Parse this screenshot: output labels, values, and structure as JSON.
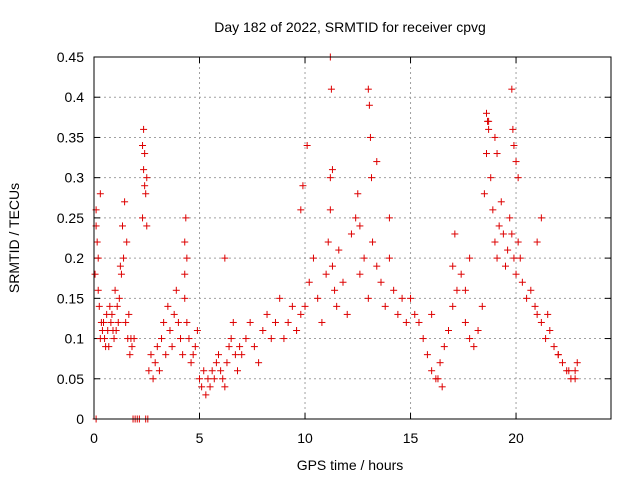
{
  "chart_data": {
    "type": "scatter",
    "title": "Day 182 of 2022, SRMTID for receiver cpvg",
    "xlabel": "GPS time / hours",
    "ylabel": "SRMTID / TECUs",
    "xlim": [
      0,
      24.5
    ],
    "ylim": [
      0,
      0.45
    ],
    "xticks": [
      0,
      5,
      10,
      15,
      20
    ],
    "yticks": [
      0,
      0.05,
      0.1,
      0.15,
      0.2,
      0.25,
      0.3,
      0.35,
      0.4,
      0.45
    ],
    "grid": true,
    "marker": "+",
    "color": "#dd0000",
    "series": [
      {
        "name": "SRMTID",
        "note": "representative sample of ~thousands of plotted points, values estimated from gridlines",
        "x": [
          0.05,
          0.1,
          0.15,
          0.2,
          0.25,
          0.3,
          0.35,
          0.4,
          0.5,
          0.6,
          0.7,
          0.8,
          0.9,
          1.0,
          1.1,
          1.2,
          1.3,
          1.4,
          1.5,
          1.6,
          1.7,
          1.8,
          1.9,
          0.1,
          0.2,
          0.3,
          0.45,
          0.55,
          0.65,
          0.75,
          0.85,
          0.95,
          1.05,
          1.15,
          1.25,
          1.35,
          1.45,
          1.55,
          1.65,
          1.75,
          2.3,
          2.35,
          2.4,
          2.45,
          2.5,
          2.3,
          2.4,
          2.5,
          2.35,
          2.6,
          2.7,
          2.8,
          2.9,
          3.0,
          3.1,
          3.2,
          3.3,
          3.4,
          3.5,
          3.6,
          3.7,
          3.8,
          3.9,
          4.0,
          4.1,
          4.2,
          4.3,
          4.4,
          4.5,
          4.6,
          4.7,
          4.8,
          4.9,
          5.0,
          5.1,
          5.2,
          5.3,
          5.4,
          5.5,
          5.6,
          5.7,
          5.8,
          5.9,
          6.0,
          6.1,
          6.2,
          6.3,
          6.4,
          6.5,
          6.6,
          6.7,
          6.8,
          6.9,
          7.0,
          7.2,
          7.4,
          7.6,
          7.8,
          8.0,
          8.2,
          8.4,
          8.6,
          8.8,
          9.0,
          9.2,
          9.4,
          9.6,
          9.8,
          4.3,
          4.35,
          4.4,
          4.3,
          6.2,
          10.0,
          10.2,
          10.4,
          10.6,
          10.8,
          11.0,
          11.1,
          11.2,
          11.3,
          11.4,
          11.5,
          11.6,
          11.8,
          12.0,
          12.2,
          12.4,
          12.6,
          12.8,
          13.0,
          13.2,
          13.4,
          13.6,
          13.8,
          14.0,
          14.2,
          14.4,
          14.6,
          14.8,
          9.8,
          9.9,
          10.1,
          11.2,
          11.25,
          11.3,
          11.2,
          12.5,
          12.6,
          13.0,
          13.05,
          13.1,
          13.15,
          13.4,
          14.0,
          15.0,
          15.2,
          15.4,
          15.6,
          15.8,
          16.0,
          16.2,
          16.4,
          16.6,
          16.8,
          17.0,
          17.2,
          17.4,
          17.6,
          17.8,
          18.0,
          18.2,
          18.4,
          16.0,
          16.3,
          16.5,
          17.6,
          17.8,
          17.1,
          17.0,
          18.5,
          18.6,
          18.7,
          18.8,
          18.9,
          19.0,
          19.1,
          19.2,
          19.3,
          19.4,
          19.5,
          19.6,
          19.7,
          19.8,
          19.9,
          20.0,
          20.1,
          20.2,
          18.6,
          18.65,
          18.7,
          19.0,
          19.1,
          19.8,
          19.85,
          19.9,
          20.0,
          20.1,
          20.3,
          20.5,
          20.7,
          20.9,
          21.0,
          21.2,
          21.4,
          21.6,
          21.8,
          22.0,
          22.2,
          22.4,
          22.6,
          22.8,
          22.9,
          21.0,
          21.2,
          21.5,
          22.0,
          22.5,
          22.8,
          0.1,
          1.85,
          1.95,
          2.05,
          2.15,
          2.45,
          2.55
        ],
        "y": [
          0.18,
          0.24,
          0.22,
          0.16,
          0.14,
          0.28,
          0.12,
          0.11,
          0.1,
          0.13,
          0.09,
          0.12,
          0.11,
          0.16,
          0.14,
          0.15,
          0.18,
          0.2,
          0.12,
          0.1,
          0.08,
          0.09,
          0.1,
          0.26,
          0.2,
          0.1,
          0.12,
          0.09,
          0.11,
          0.14,
          0.13,
          0.1,
          0.11,
          0.12,
          0.19,
          0.24,
          0.27,
          0.22,
          0.13,
          0.1,
          0.34,
          0.36,
          0.29,
          0.28,
          0.3,
          0.25,
          0.33,
          0.24,
          0.31,
          0.06,
          0.08,
          0.05,
          0.07,
          0.09,
          0.06,
          0.1,
          0.12,
          0.08,
          0.14,
          0.11,
          0.09,
          0.13,
          0.16,
          0.12,
          0.1,
          0.08,
          0.15,
          0.12,
          0.1,
          0.07,
          0.08,
          0.09,
          0.11,
          0.05,
          0.04,
          0.06,
          0.03,
          0.05,
          0.04,
          0.06,
          0.05,
          0.07,
          0.08,
          0.06,
          0.05,
          0.04,
          0.07,
          0.09,
          0.1,
          0.12,
          0.08,
          0.06,
          0.09,
          0.08,
          0.1,
          0.12,
          0.09,
          0.07,
          0.11,
          0.13,
          0.1,
          0.12,
          0.15,
          0.1,
          0.12,
          0.14,
          0.11,
          0.13,
          0.22,
          0.25,
          0.2,
          0.18,
          0.2,
          0.14,
          0.17,
          0.2,
          0.15,
          0.12,
          0.18,
          0.22,
          0.26,
          0.19,
          0.16,
          0.14,
          0.21,
          0.17,
          0.13,
          0.23,
          0.25,
          0.18,
          0.2,
          0.15,
          0.22,
          0.19,
          0.17,
          0.14,
          0.2,
          0.16,
          0.13,
          0.15,
          0.12,
          0.26,
          0.29,
          0.34,
          0.45,
          0.41,
          0.31,
          0.3,
          0.28,
          0.24,
          0.41,
          0.39,
          0.35,
          0.3,
          0.32,
          0.25,
          0.15,
          0.13,
          0.12,
          0.1,
          0.08,
          0.06,
          0.05,
          0.07,
          0.09,
          0.11,
          0.14,
          0.16,
          0.18,
          0.12,
          0.1,
          0.09,
          0.11,
          0.14,
          0.13,
          0.05,
          0.04,
          0.16,
          0.2,
          0.23,
          0.19,
          0.28,
          0.33,
          0.37,
          0.3,
          0.26,
          0.22,
          0.2,
          0.24,
          0.27,
          0.23,
          0.19,
          0.21,
          0.25,
          0.23,
          0.2,
          0.18,
          0.22,
          0.2,
          0.38,
          0.37,
          0.36,
          0.35,
          0.33,
          0.41,
          0.36,
          0.34,
          0.32,
          0.3,
          0.17,
          0.15,
          0.16,
          0.14,
          0.13,
          0.12,
          0.1,
          0.11,
          0.09,
          0.08,
          0.07,
          0.06,
          0.05,
          0.06,
          0.07,
          0.22,
          0.25,
          0.13,
          0.08,
          0.06,
          0.05,
          0.0,
          0.0,
          0.0,
          0.0,
          0.0,
          0.0,
          0.0
        ]
      }
    ]
  }
}
